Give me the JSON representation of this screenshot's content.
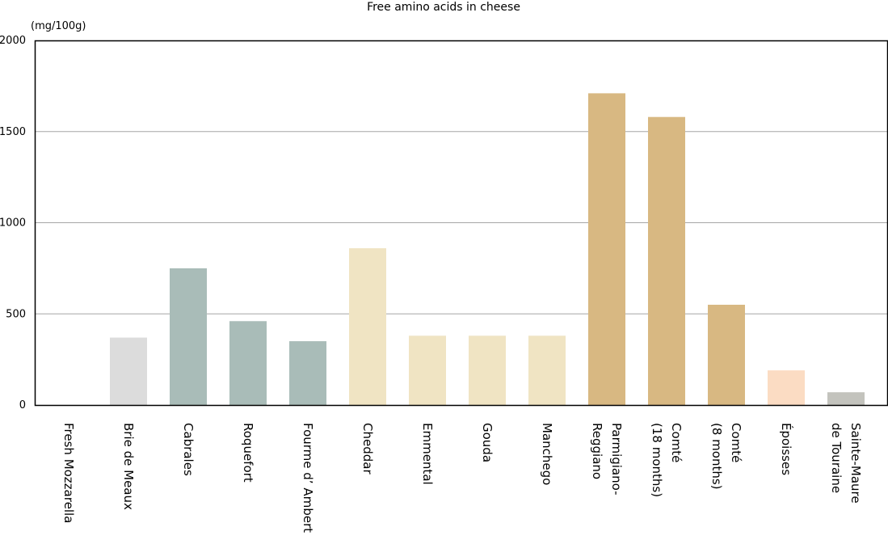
{
  "chart_data": {
    "type": "bar",
    "title": "Free amino acids in cheese",
    "unit_label": "(mg/100g)",
    "xlabel": "",
    "ylabel": "",
    "ylim": [
      0,
      2000
    ],
    "yticks": [
      0,
      500,
      1000,
      1500,
      2000
    ],
    "grid": true,
    "legend": "none",
    "categories": [
      [
        "Fresh Mozzarella"
      ],
      [
        "Brie de Meaux"
      ],
      [
        "Cabrales"
      ],
      [
        "Roquefort"
      ],
      [
        "Fourme d’ Ambert"
      ],
      [
        "Cheddar"
      ],
      [
        "Emmental"
      ],
      [
        "Gouda"
      ],
      [
        "Manchego"
      ],
      [
        "Parmigiano-",
        "Reggiano"
      ],
      [
        "Comté",
        "(18 months)"
      ],
      [
        "Comté",
        "(8 months)"
      ],
      [
        "Époisses"
      ],
      [
        "Sainte-Maure",
        "de Touraine"
      ]
    ],
    "values": [
      0,
      370,
      750,
      460,
      350,
      860,
      380,
      380,
      380,
      1710,
      1580,
      550,
      190,
      70
    ],
    "colors": [
      "#d9d9d9",
      "#dcdcdc",
      "#a9bcb8",
      "#a9bcb8",
      "#a9bcb8",
      "#f0e4c3",
      "#f0e4c3",
      "#f0e4c3",
      "#f0e4c3",
      "#d8b882",
      "#d8b882",
      "#d8b882",
      "#fbdcc3",
      "#c3c3bd"
    ]
  }
}
